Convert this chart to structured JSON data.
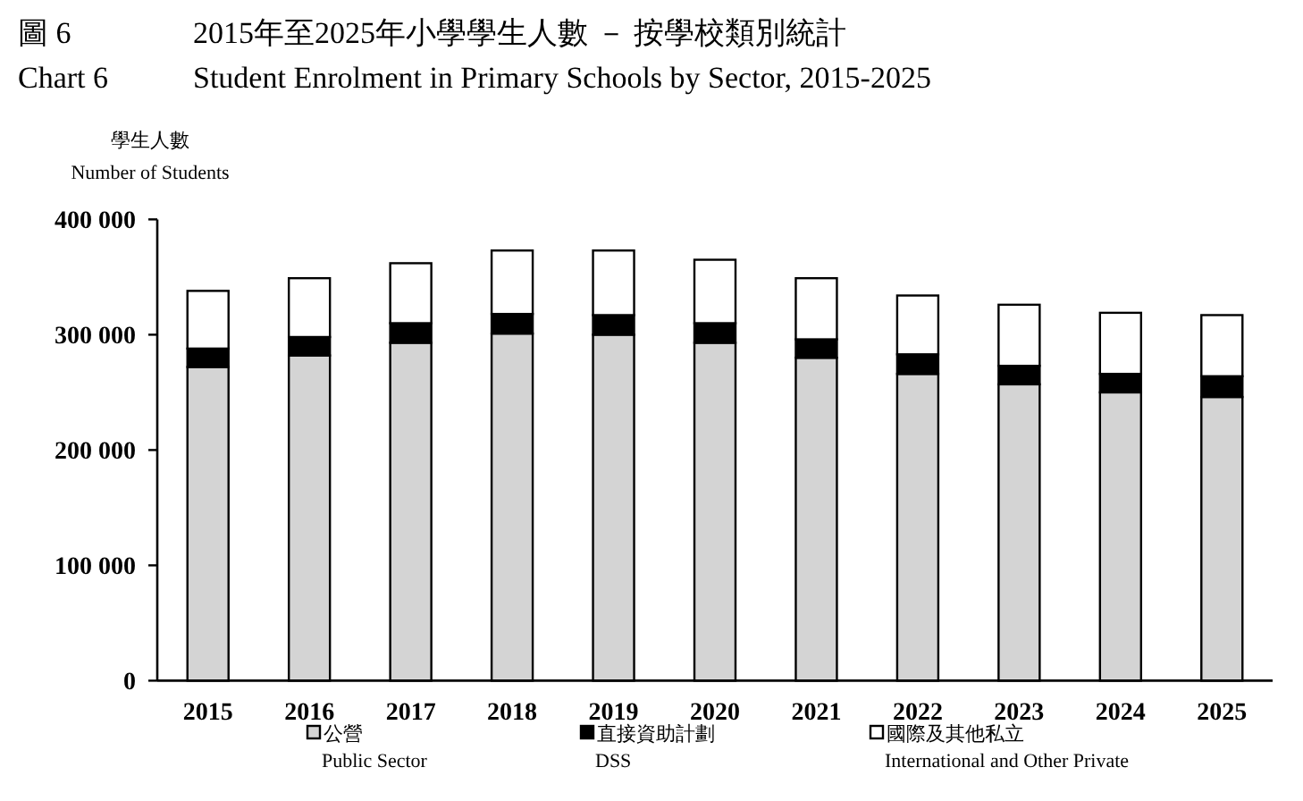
{
  "chart_data": {
    "type": "bar",
    "stacked": true,
    "title": "2015年至2025年小學學生人數 － 按學校類別統計",
    "subtitle": "Student Enrolment in Primary Schools by Sector, 2015-2025",
    "annotations": [
      "圖 6",
      "Chart 6"
    ],
    "ylabel": "學生人數\nNumber of Students",
    "categories": [
      "2015",
      "2016",
      "2017",
      "2018",
      "2019",
      "2020",
      "2021",
      "2022",
      "2023",
      "2024",
      "2025"
    ],
    "ylim": [
      0,
      400000
    ],
    "yticks": [
      {
        "value": 0,
        "label": "0"
      },
      {
        "value": 100000,
        "label": "100 000"
      },
      {
        "value": 200000,
        "label": "200 000"
      },
      {
        "value": 300000,
        "label": "300 000"
      },
      {
        "value": 400000,
        "label": "400 000"
      }
    ],
    "legend": "bottom",
    "series": [
      {
        "name": "公營\nPublic Sector",
        "color": "#d4d4d4",
        "values": [
          272000,
          282000,
          293000,
          301000,
          300000,
          293000,
          280000,
          266000,
          257000,
          250000,
          246000
        ]
      },
      {
        "name": "直接資助計劃\nDSS",
        "color": "#000000",
        "values": [
          16000,
          16000,
          17000,
          17000,
          17000,
          17000,
          16000,
          17000,
          16000,
          16000,
          18000
        ]
      },
      {
        "name": "國際及其他私立\nInternational and Other Private",
        "color": "#ffffff",
        "values": [
          50000,
          51000,
          52000,
          55000,
          56000,
          55000,
          53000,
          51000,
          53000,
          53000,
          53000
        ]
      }
    ]
  }
}
